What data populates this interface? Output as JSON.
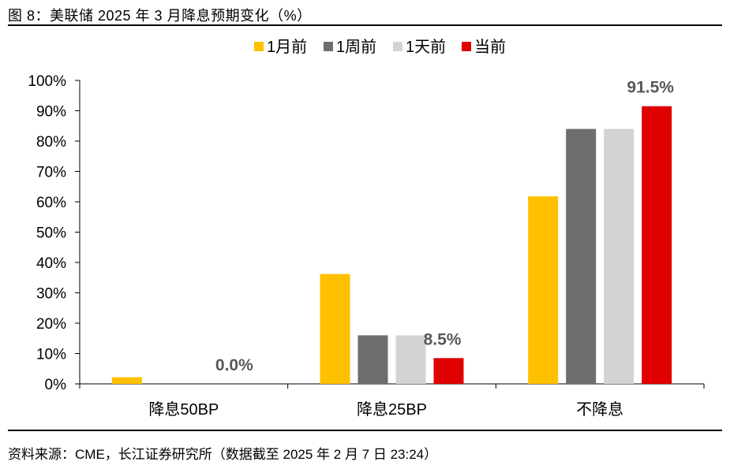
{
  "figure": {
    "title": "图 8：美联储 2025 年 3 月降息预期变化（%）",
    "source": "资料来源：CME，长江证券研究所（数据截至 2025 年 2 月 7 日 23:24）"
  },
  "chart_data": {
    "type": "bar",
    "title": "",
    "xlabel": "",
    "ylabel": "",
    "ylim": [
      0,
      100
    ],
    "yticks": [
      "0%",
      "10%",
      "20%",
      "30%",
      "40%",
      "50%",
      "60%",
      "70%",
      "80%",
      "90%",
      "100%"
    ],
    "categories": [
      "降息50BP",
      "降息25BP",
      "不降息"
    ],
    "series": [
      {
        "name": "1月前",
        "color": "#FFC000",
        "values": [
          2.2,
          36.2,
          61.8
        ]
      },
      {
        "name": "1周前",
        "color": "#6E6E6E",
        "values": [
          0,
          16.0,
          84.0
        ]
      },
      {
        "name": "1天前",
        "color": "#D3D3D3",
        "values": [
          0,
          16.0,
          84.0
        ]
      },
      {
        "name": "当前",
        "color": "#E00000",
        "values": [
          0.0,
          8.5,
          91.5
        ]
      }
    ],
    "data_labels": [
      {
        "series": "当前",
        "category": "降息50BP",
        "text": "0.0%"
      },
      {
        "series": "当前",
        "category": "降息25BP",
        "text": "8.5%"
      },
      {
        "series": "当前",
        "category": "不降息",
        "text": "91.5%"
      }
    ],
    "legend_position": "top-center",
    "grid": false
  }
}
